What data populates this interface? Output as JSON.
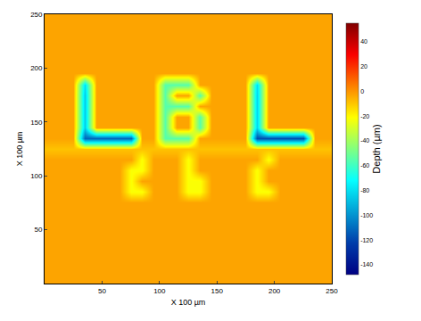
{
  "chart_data": {
    "type": "heatmap",
    "x_label": "X 100 µm",
    "y_label": "X 100 µm",
    "colorbar_label": "Depth (µm)",
    "x": [
      5,
      15,
      25,
      35,
      45,
      55,
      65,
      75,
      85,
      95,
      105,
      115,
      125,
      135,
      145,
      155,
      165,
      175,
      185,
      195,
      205,
      215,
      225,
      235,
      245
    ],
    "y": [
      5,
      15,
      25,
      35,
      45,
      55,
      65,
      75,
      85,
      95,
      105,
      115,
      125,
      135,
      145,
      155,
      165,
      175,
      185,
      195,
      205,
      215,
      225,
      235,
      245
    ],
    "z": [
      [
        -3,
        -3,
        -3,
        -3,
        -3,
        -3,
        -3,
        -3,
        -3,
        -3,
        -3,
        -3,
        -3,
        -3,
        -3,
        -3,
        -3,
        -3,
        -3,
        -3,
        -3,
        -3,
        -3,
        -3,
        -3
      ],
      [
        -3,
        -3,
        -3,
        -3,
        -3,
        -3,
        -3,
        -3,
        -3,
        -3,
        -3,
        -3,
        -3,
        -3,
        -3,
        -3,
        -3,
        -3,
        -3,
        -3,
        -3,
        -3,
        -3,
        -3,
        -3
      ],
      [
        -3,
        -3,
        -3,
        -3,
        -3,
        -3,
        -3,
        -3,
        -3,
        -3,
        -3,
        -3,
        -3,
        -3,
        -3,
        -3,
        -3,
        -3,
        -3,
        -3,
        -3,
        -3,
        -3,
        -3,
        -3
      ],
      [
        -3,
        -3,
        -3,
        -3,
        -3,
        -3,
        -3,
        -3,
        -3,
        -3,
        -3,
        -3,
        -3,
        -3,
        -3,
        -3,
        -3,
        -3,
        -3,
        -3,
        -3,
        -3,
        -3,
        -3,
        -3
      ],
      [
        -3,
        -3,
        -3,
        -3,
        -3,
        -3,
        -3,
        -3,
        -3,
        -3,
        -3,
        -3,
        -3,
        -3,
        -3,
        -3,
        -3,
        -3,
        -3,
        -3,
        -3,
        -3,
        -3,
        -3,
        -3
      ],
      [
        -3,
        -3,
        -3,
        -3,
        -3,
        -3,
        -3,
        -3,
        -3,
        -3,
        -3,
        -3,
        -3,
        -3,
        -3,
        -3,
        -3,
        -3,
        -3,
        -3,
        -3,
        -3,
        -3,
        -3,
        -3
      ],
      [
        -3,
        -3,
        -3,
        -3,
        -3,
        -3,
        -3,
        -3,
        -3,
        -3,
        -3,
        -3,
        -3,
        -3,
        -3,
        -3,
        -3,
        -3,
        -3,
        -3,
        -3,
        -3,
        -3,
        -3,
        -3
      ],
      [
        -3,
        -3,
        -3,
        -3,
        -3,
        -3,
        -3,
        -3,
        -3,
        -3,
        -3,
        -3,
        -3,
        -3,
        -3,
        -3,
        -3,
        -3,
        -3,
        -3,
        -3,
        -3,
        -3,
        -3,
        -3
      ],
      [
        -3,
        -3,
        -3,
        -3,
        -3,
        -3,
        -3,
        -22,
        -22,
        -3,
        -3,
        -3,
        -22,
        -22,
        -3,
        -3,
        -3,
        -3,
        -22,
        -22,
        -3,
        -3,
        -3,
        -3,
        -3
      ],
      [
        -3,
        -3,
        -3,
        -3,
        -3,
        -3,
        -3,
        -22,
        -3,
        -3,
        -3,
        -3,
        -22,
        -22,
        -3,
        -3,
        -3,
        -3,
        -22,
        -3,
        -3,
        -3,
        -3,
        -3,
        -3
      ],
      [
        -3,
        -3,
        -3,
        -3,
        -3,
        -3,
        -3,
        -22,
        -22,
        -3,
        -3,
        -3,
        -22,
        -3,
        -3,
        -3,
        -3,
        -3,
        -22,
        -3,
        -3,
        -3,
        -3,
        -3,
        -3
      ],
      [
        -3,
        -3,
        -3,
        -3,
        -3,
        -3,
        -3,
        -3,
        -22,
        -3,
        -3,
        -3,
        -22,
        -3,
        -3,
        -3,
        -3,
        -3,
        -3,
        -22,
        -3,
        -3,
        -3,
        -3,
        -3
      ],
      [
        -9,
        -9,
        -9,
        -9,
        -9,
        -9,
        -9,
        -9,
        -9,
        -9,
        -9,
        -9,
        -9,
        -9,
        -9,
        -9,
        -9,
        -9,
        -9,
        -9,
        -9,
        -9,
        -9,
        -9,
        -9
      ],
      [
        -3,
        -3,
        -3,
        -112,
        -112,
        -112,
        -112,
        -112,
        -3,
        -3,
        -55,
        -55,
        -55,
        -3,
        -3,
        -3,
        -3,
        -3,
        -118,
        -118,
        -118,
        -118,
        -118,
        -3,
        -3
      ],
      [
        -3,
        -3,
        -3,
        -85,
        -3,
        -3,
        -3,
        -3,
        -3,
        -3,
        -55,
        -3,
        -3,
        -55,
        -3,
        -3,
        -3,
        -3,
        -82,
        -3,
        -3,
        -3,
        -3,
        -3,
        -3
      ],
      [
        -3,
        -3,
        -3,
        -85,
        -3,
        -3,
        -3,
        -3,
        -3,
        -3,
        -55,
        -3,
        -3,
        -55,
        -3,
        -3,
        -3,
        -3,
        -82,
        -3,
        -3,
        -3,
        -3,
        -3,
        -3
      ],
      [
        -3,
        -3,
        -3,
        -85,
        -3,
        -3,
        -3,
        -3,
        -3,
        -3,
        -55,
        -55,
        -55,
        -3,
        -3,
        -3,
        -3,
        -3,
        -82,
        -3,
        -3,
        -3,
        -3,
        -3,
        -3
      ],
      [
        -3,
        -3,
        -3,
        -85,
        -3,
        -3,
        -3,
        -3,
        -3,
        -3,
        -55,
        -3,
        -3,
        -55,
        -3,
        -3,
        -3,
        -3,
        -82,
        -3,
        -3,
        -3,
        -3,
        -3,
        -3
      ],
      [
        -3,
        -3,
        -3,
        -80,
        -3,
        -3,
        -3,
        -3,
        -3,
        -3,
        -55,
        -55,
        -55,
        -3,
        -3,
        -3,
        -3,
        -3,
        -80,
        -3,
        -3,
        -3,
        -3,
        -3,
        -3
      ],
      [
        -3,
        -3,
        -3,
        -3,
        -3,
        -3,
        -3,
        -3,
        -3,
        -3,
        -3,
        -3,
        -3,
        -3,
        -3,
        -3,
        -3,
        -3,
        -3,
        -3,
        -3,
        -3,
        -3,
        -3,
        -3
      ],
      [
        -3,
        -3,
        -3,
        -3,
        -3,
        -3,
        -3,
        -3,
        -3,
        -3,
        -3,
        -3,
        -3,
        -3,
        -3,
        -3,
        -3,
        -3,
        -3,
        -3,
        -3,
        -3,
        -3,
        -3,
        -3
      ],
      [
        -3,
        -3,
        -3,
        -3,
        -3,
        -3,
        -3,
        -3,
        -3,
        -3,
        -3,
        -3,
        -3,
        -3,
        -3,
        -3,
        -3,
        -3,
        -3,
        -3,
        -3,
        -3,
        -3,
        -3,
        -3
      ],
      [
        -3,
        -3,
        -3,
        -3,
        -3,
        -3,
        -3,
        -3,
        -3,
        -3,
        -3,
        -3,
        -3,
        -3,
        -3,
        -3,
        -3,
        -3,
        -3,
        -3,
        -3,
        -3,
        -3,
        -3,
        -3
      ],
      [
        -3,
        -3,
        -3,
        -3,
        -3,
        -3,
        -3,
        -3,
        -3,
        -3,
        -3,
        -3,
        -3,
        -3,
        -3,
        -3,
        -3,
        -3,
        -3,
        -3,
        -3,
        -3,
        -3,
        -3,
        -3
      ],
      [
        -3,
        -3,
        -3,
        -3,
        -3,
        -3,
        -3,
        -3,
        -3,
        -3,
        -3,
        -3,
        -3,
        -3,
        -3,
        -3,
        -3,
        -3,
        -3,
        -3,
        -3,
        -3,
        -3,
        -3,
        -3
      ]
    ],
    "xlim": [
      0,
      250
    ],
    "ylim": [
      0,
      250
    ],
    "xticks": [
      50,
      100,
      150,
      200,
      250
    ],
    "yticks": [
      50,
      100,
      150,
      200,
      250
    ],
    "zlim": [
      -148,
      55
    ],
    "zticks": [
      40,
      20,
      0,
      -20,
      -40,
      -60,
      -80,
      -100,
      -120,
      -140
    ],
    "grid": false
  }
}
